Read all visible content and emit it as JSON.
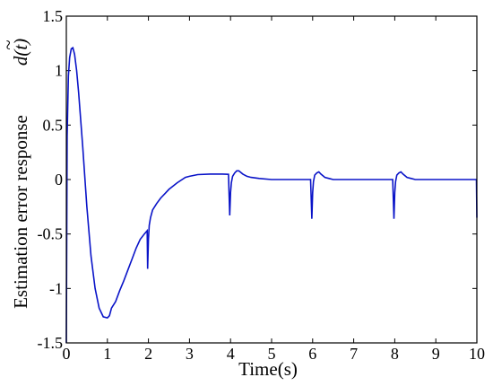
{
  "chart_data": {
    "type": "line",
    "title": "",
    "xlabel": "Time(s)",
    "ylabel": "Estimation error response",
    "ylabel_symbol": "d(t)",
    "xlim": [
      0,
      10
    ],
    "ylim": [
      -1.5,
      1.5
    ],
    "x_ticks": [
      "0",
      "1",
      "2",
      "3",
      "4",
      "5",
      "6",
      "7",
      "8",
      "9",
      "10"
    ],
    "y_ticks": [
      "1.5",
      "1",
      "0.5",
      "0",
      "-0.5",
      "-1",
      "-1.5"
    ],
    "grid": false,
    "legend": "none",
    "series_color": "#0a14c8",
    "series": [
      {
        "x": [
          0,
          0.02,
          0.05,
          0.08,
          0.12,
          0.16,
          0.2,
          0.25,
          0.3,
          0.4,
          0.5,
          0.6,
          0.7,
          0.8,
          0.9,
          1.0,
          1.05,
          1.1,
          1.2,
          1.3,
          1.4,
          1.5,
          1.6,
          1.7,
          1.8,
          1.9,
          1.97,
          1.98,
          2.0,
          2.02,
          2.05,
          2.1,
          2.2,
          2.3,
          2.4,
          2.5,
          2.7,
          2.9,
          3.0,
          3.2,
          3.5,
          3.8,
          3.95,
          3.98,
          4.0,
          4.02,
          4.05,
          4.1,
          4.15,
          4.2,
          4.3,
          4.4,
          4.5,
          4.7,
          5.0,
          5.5,
          5.95,
          5.98,
          6.0,
          6.02,
          6.05,
          6.1,
          6.15,
          6.2,
          6.3,
          6.4,
          6.5,
          7.0,
          7.5,
          7.95,
          7.98,
          8.0,
          8.02,
          8.05,
          8.1,
          8.15,
          8.2,
          8.3,
          8.4,
          8.5,
          9.0,
          9.5,
          9.99,
          10.0
        ],
        "y": [
          -1.5,
          0.4,
          0.95,
          1.12,
          1.2,
          1.21,
          1.15,
          1.0,
          0.8,
          0.3,
          -0.25,
          -0.7,
          -1.0,
          -1.18,
          -1.26,
          -1.27,
          -1.25,
          -1.18,
          -1.12,
          -1.02,
          -0.93,
          -0.83,
          -0.73,
          -0.63,
          -0.55,
          -0.5,
          -0.47,
          -0.82,
          -0.55,
          -0.42,
          -0.35,
          -0.28,
          -0.22,
          -0.17,
          -0.13,
          -0.09,
          -0.03,
          0.02,
          0.03,
          0.045,
          0.05,
          0.05,
          0.048,
          -0.33,
          -0.12,
          -0.03,
          0.03,
          0.06,
          0.08,
          0.08,
          0.05,
          0.03,
          0.02,
          0.01,
          0.0,
          0.0,
          0.0,
          -0.36,
          -0.12,
          -0.02,
          0.04,
          0.06,
          0.07,
          0.05,
          0.02,
          0.01,
          0.0,
          0.0,
          0.0,
          0.0,
          -0.36,
          -0.12,
          -0.02,
          0.04,
          0.06,
          0.07,
          0.05,
          0.02,
          0.01,
          0.0,
          0.0,
          0.0,
          0.0,
          -0.35
        ]
      }
    ]
  }
}
